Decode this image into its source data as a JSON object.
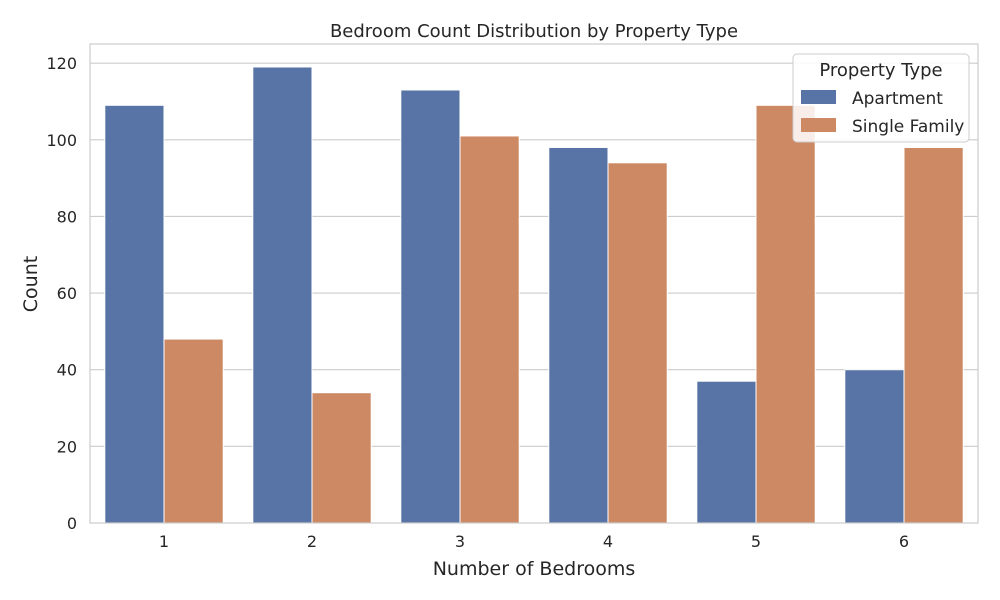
{
  "chart_data": {
    "type": "bar",
    "title": "Bedroom Count Distribution by Property Type",
    "xlabel": "Number of Bedrooms",
    "ylabel": "Count",
    "categories": [
      "1",
      "2",
      "3",
      "4",
      "5",
      "6"
    ],
    "series": [
      {
        "name": "Apartment",
        "color": "#5874a6",
        "values": [
          109,
          119,
          113,
          98,
          37,
          40
        ]
      },
      {
        "name": "Single Family",
        "color": "#cc8963",
        "values": [
          48,
          34,
          101,
          94,
          109,
          98
        ]
      }
    ],
    "ylim": [
      0,
      125
    ],
    "yticks": [
      0,
      20,
      40,
      60,
      80,
      100,
      120
    ],
    "grid": true,
    "legend": {
      "title": "Property Type",
      "position": "top-right"
    }
  }
}
